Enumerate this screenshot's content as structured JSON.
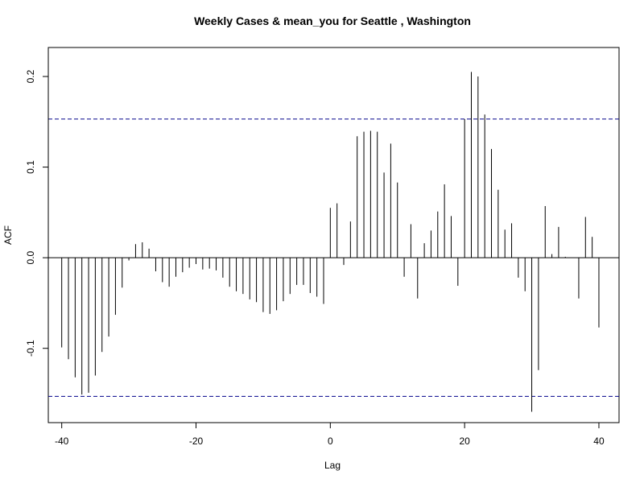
{
  "chart_data": {
    "type": "bar",
    "title": "Weekly Cases & mean_you for Seattle , Washington",
    "xlabel": "Lag",
    "ylabel": "ACF",
    "xlim": [
      -42,
      43
    ],
    "ylim": [
      -0.182,
      0.232
    ],
    "x_ticks": [
      -40,
      -20,
      0,
      20,
      40
    ],
    "x_tick_labels": [
      "-40",
      "-20",
      "0",
      "20",
      "40"
    ],
    "y_ticks": [
      -0.1,
      0.0,
      0.1,
      0.2
    ],
    "y_tick_labels": [
      "-0.1",
      "0.0",
      "0.1",
      "0.2"
    ],
    "ci_bounds": [
      0.153,
      -0.153
    ],
    "ci_color": "#00008b",
    "bar_color": "#000000",
    "grid": false,
    "x": [
      -40,
      -39,
      -38,
      -37,
      -36,
      -35,
      -34,
      -33,
      -32,
      -31,
      -30,
      -29,
      -28,
      -27,
      -26,
      -25,
      -24,
      -23,
      -22,
      -21,
      -20,
      -19,
      -18,
      -17,
      -16,
      -15,
      -14,
      -13,
      -12,
      -11,
      -10,
      -9,
      -8,
      -7,
      -6,
      -5,
      -4,
      -3,
      -2,
      -1,
      0,
      1,
      2,
      3,
      4,
      5,
      6,
      7,
      8,
      9,
      10,
      11,
      12,
      13,
      14,
      15,
      16,
      17,
      18,
      19,
      20,
      21,
      22,
      23,
      24,
      25,
      26,
      27,
      28,
      29,
      30,
      31,
      32,
      33,
      34,
      35,
      36,
      37,
      38,
      39,
      40
    ],
    "values": [
      -0.099,
      -0.112,
      -0.132,
      -0.151,
      -0.149,
      -0.13,
      -0.104,
      -0.087,
      -0.063,
      -0.033,
      -0.003,
      0.015,
      0.017,
      0.01,
      -0.015,
      -0.027,
      -0.032,
      -0.021,
      -0.016,
      -0.011,
      -0.007,
      -0.013,
      -0.012,
      -0.014,
      -0.022,
      -0.032,
      -0.037,
      -0.04,
      -0.046,
      -0.049,
      -0.06,
      -0.062,
      -0.058,
      -0.048,
      -0.04,
      -0.03,
      -0.03,
      -0.039,
      -0.043,
      -0.051,
      0.055,
      0.06,
      -0.008,
      0.04,
      0.134,
      0.139,
      0.14,
      0.139,
      0.094,
      0.126,
      0.083,
      -0.021,
      0.037,
      -0.045,
      0.016,
      0.03,
      0.051,
      0.081,
      0.046,
      -0.031,
      0.153,
      0.205,
      0.2,
      0.158,
      0.12,
      0.075,
      0.031,
      0.038,
      -0.022,
      -0.037,
      -0.17,
      -0.124,
      0.057,
      0.004,
      0.034,
      0.001,
      0.0,
      -0.045,
      0.045,
      0.023,
      -0.077
    ]
  }
}
